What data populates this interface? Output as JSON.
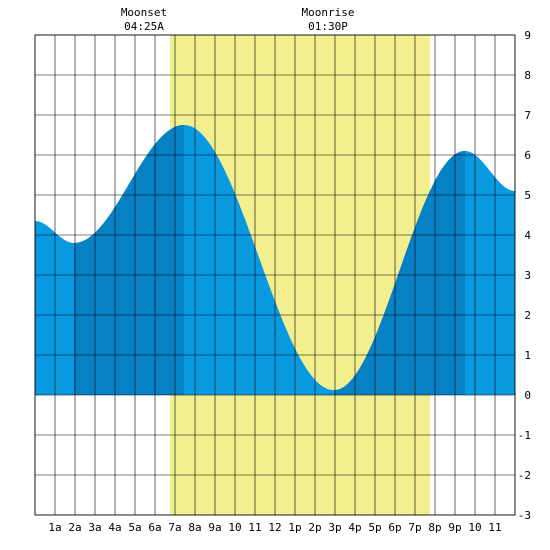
{
  "chart_data": {
    "type": "area",
    "x_ticks": [
      "1a",
      "2a",
      "3a",
      "4a",
      "5a",
      "6a",
      "7a",
      "8a",
      "9a",
      "10",
      "11",
      "12",
      "1p",
      "2p",
      "3p",
      "4p",
      "5p",
      "6p",
      "7p",
      "8p",
      "9p",
      "10",
      "11"
    ],
    "y_ticks": [
      "9",
      "8",
      "7",
      "6",
      "5",
      "4",
      "3",
      "2",
      "1",
      "0",
      "-1",
      "-2",
      "-3"
    ],
    "ylim": [
      -3,
      9
    ],
    "xlim_hours": [
      0,
      24
    ],
    "grid": true,
    "tide_curve": {
      "x_hours": [
        0,
        1.95,
        7.45,
        14.95,
        21.5,
        24
      ],
      "y_values": [
        4.35,
        3.8,
        6.75,
        0.12,
        6.1,
        5.1
      ]
    },
    "daylight_window_hours": [
      6.75,
      19.75
    ],
    "moonset": {
      "label": "Moonset",
      "time": "04:25A"
    },
    "moonrise": {
      "label": "Moonrise",
      "time": "01:30P"
    },
    "colors": {
      "daylight": "#f3ee8e",
      "water": "#0899e0",
      "water_shaded": "#0581c4",
      "grid": "#000000",
      "background": "#ffffff"
    }
  }
}
